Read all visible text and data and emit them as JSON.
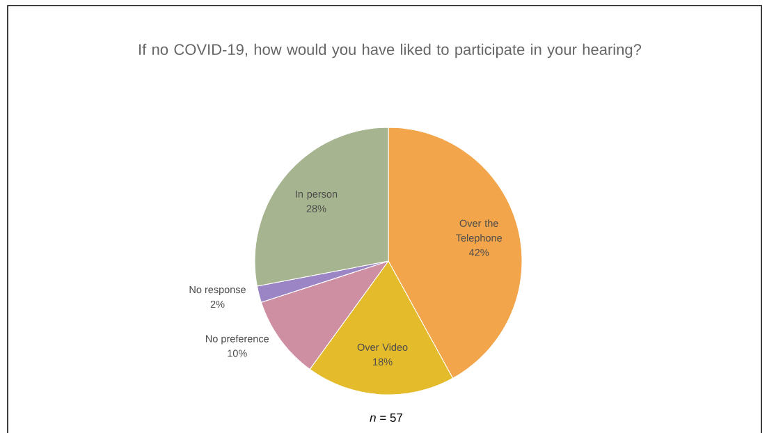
{
  "chart_data": {
    "type": "pie",
    "title": "If no COVID-19, how would you have liked to participate in your hearing?",
    "categories": [
      "Over the Telephone",
      "Over Video",
      "No preference",
      "No response",
      "In person"
    ],
    "values": [
      42,
      18,
      10,
      2,
      28
    ],
    "value_labels": [
      "42%",
      "18%",
      "10%",
      "2%",
      "28%"
    ],
    "colors": [
      "#f2a54a",
      "#e4bb2a",
      "#cf8fa3",
      "#9b85c4",
      "#a6b590"
    ],
    "annotations": [
      "*n* = 57"
    ]
  }
}
